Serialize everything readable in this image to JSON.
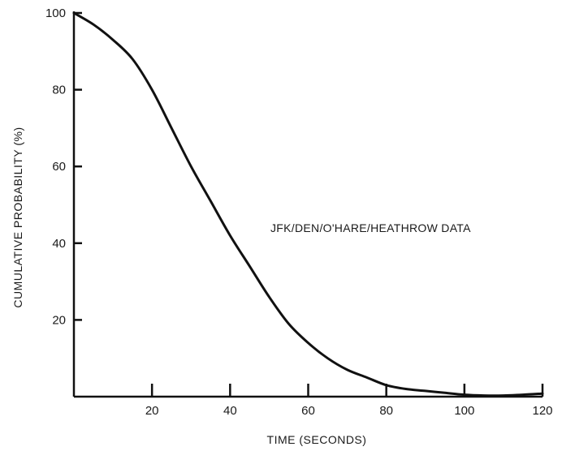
{
  "chart_data": {
    "type": "line",
    "title": "",
    "xlabel": "TIME (SECONDS)",
    "ylabel": "CUMULATIVE PROBABILITY (%)",
    "xlim": [
      0,
      120
    ],
    "ylim": [
      0,
      100
    ],
    "x_ticks": [
      20,
      40,
      60,
      80,
      100,
      120
    ],
    "y_ticks": [
      20,
      40,
      60,
      80,
      100
    ],
    "grid": false,
    "annotation": "JFK/DEN/O'HARE/HEATHROW DATA",
    "series": [
      {
        "x": [
          0,
          5,
          10,
          15,
          20,
          25,
          30,
          35,
          40,
          45,
          50,
          55,
          60,
          65,
          70,
          75,
          80,
          85,
          90,
          95,
          100,
          105,
          110,
          115,
          120
        ],
        "y": [
          100,
          97,
          93,
          88,
          80,
          70,
          60,
          51,
          42,
          34,
          26,
          19,
          14,
          10,
          7,
          5,
          3,
          2,
          1.5,
          1,
          0.5,
          0.3,
          0.3,
          0.5,
          0.8
        ]
      }
    ]
  },
  "colors": {
    "line": "#111111",
    "axis": "#111111",
    "background": "#ffffff"
  }
}
